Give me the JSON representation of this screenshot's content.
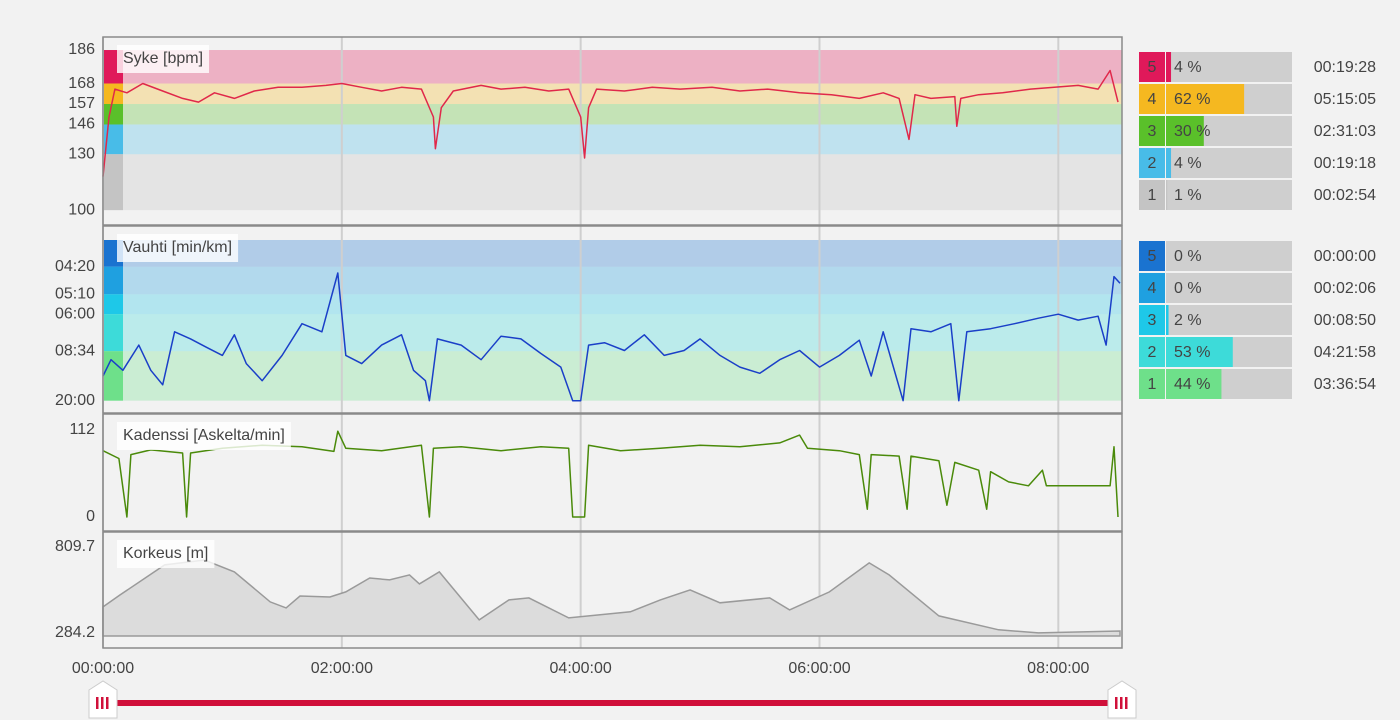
{
  "chart_data": [
    {
      "type": "line",
      "title": "Syke [bpm]",
      "color": "#e0284a",
      "x": [
        0,
        3,
        6,
        12,
        20,
        30,
        40,
        48,
        56,
        66,
        76,
        88,
        100,
        112,
        120,
        130,
        140,
        150,
        160,
        166,
        167,
        170,
        176,
        190,
        200,
        212,
        224,
        234,
        240,
        242,
        244,
        248,
        262,
        276,
        290,
        306,
        320,
        334,
        350,
        366,
        380,
        392,
        400,
        405,
        408,
        416,
        428,
        429,
        431,
        440,
        452,
        466,
        478,
        490,
        500,
        506,
        510
      ],
      "values": [
        118,
        150,
        165,
        163,
        168,
        164,
        160,
        158,
        163,
        160,
        164,
        166,
        166,
        167,
        168,
        166,
        164,
        166,
        165,
        150,
        133,
        155,
        164,
        167,
        165,
        166,
        164,
        165,
        150,
        128,
        155,
        165,
        164,
        166,
        165,
        166,
        164,
        165,
        163,
        162,
        160,
        163,
        160,
        138,
        162,
        160,
        161,
        145,
        160,
        162,
        163,
        165,
        166,
        167,
        165,
        175,
        158
      ],
      "xlim": [
        0,
        512
      ],
      "ylim": [
        92,
        193
      ],
      "yticks": [
        100,
        130,
        146,
        157,
        168,
        186
      ],
      "zones": {
        "labels": [
          5,
          4,
          3,
          2,
          1
        ],
        "colors": [
          "#e0195a",
          "#f5b820",
          "#5ac02a",
          "#48bce8",
          "#c4c4c4"
        ],
        "values": [
          4,
          62,
          30,
          4,
          1
        ],
        "value_labels": [
          "4 %",
          "62 %",
          "30 %",
          "4 %",
          "1 %"
        ],
        "times": [
          "00:19:28",
          "05:15:05",
          "02:31:03",
          "00:19:18",
          "00:02:54"
        ]
      }
    },
    {
      "type": "line",
      "title": "Vauhti [min/km]",
      "color": "#1a3fc8",
      "scale": "reciprocal",
      "x": [
        0,
        4,
        10,
        18,
        24,
        30,
        36,
        44,
        52,
        60,
        66,
        72,
        80,
        90,
        100,
        110,
        118,
        122,
        130,
        140,
        150,
        156,
        162,
        164,
        168,
        180,
        190,
        200,
        210,
        220,
        230,
        236,
        240,
        244,
        252,
        262,
        272,
        282,
        292,
        300,
        310,
        320,
        330,
        340,
        350,
        360,
        370,
        380,
        386,
        392,
        402,
        406,
        416,
        426,
        430,
        434,
        446,
        458,
        470,
        480,
        490,
        500,
        504,
        508,
        511
      ],
      "values": [
        12,
        9.5,
        11,
        8,
        11,
        14,
        7,
        7.5,
        8.2,
        9,
        7.2,
        10,
        13,
        9,
        6.5,
        7,
        4.5,
        9,
        10,
        8,
        7.2,
        11,
        13,
        20,
        7.5,
        8,
        9.5,
        7.3,
        7.5,
        8.8,
        10.5,
        20,
        20,
        8,
        7.8,
        8.5,
        7.2,
        9,
        8.5,
        7.5,
        9,
        10.5,
        11.5,
        9.5,
        8.5,
        10.5,
        9,
        7.6,
        12,
        7,
        20,
        6.8,
        7,
        6.5,
        20,
        7,
        6.8,
        6.5,
        6.2,
        6,
        6.3,
        6.1,
        8,
        4.6,
        4.8
      ],
      "xlim": [
        0,
        512
      ],
      "ylim": [
        30,
        3.5
      ],
      "yticks": [
        {
          "value": 20,
          "label": "20:00"
        },
        {
          "value": 8.5667,
          "label": "08:34"
        },
        {
          "value": 6,
          "label": "06:00"
        },
        {
          "value": 5.1667,
          "label": "05:10"
        },
        {
          "value": 4.3333,
          "label": "04:20"
        }
      ],
      "zones": {
        "labels": [
          5,
          4,
          3,
          2,
          1
        ],
        "colors": [
          "#1a73d0",
          "#1fa0e0",
          "#1ec8e8",
          "#3ddbd9",
          "#6ee08a"
        ],
        "values": [
          0,
          0,
          2,
          53,
          44
        ],
        "value_labels": [
          "0 %",
          "0 %",
          "2 %",
          "53 %",
          "44 %"
        ],
        "times": [
          "00:00:00",
          "00:02:06",
          "00:08:50",
          "04:21:58",
          "03:36:54"
        ]
      }
    },
    {
      "type": "line",
      "title": "Kadenssi [Askelta/min]",
      "color": "#4a8a0a",
      "x": [
        0,
        8,
        12,
        14,
        24,
        40,
        42,
        44,
        60,
        80,
        100,
        116,
        118,
        122,
        140,
        160,
        164,
        166,
        180,
        200,
        220,
        234,
        236,
        242,
        244,
        260,
        280,
        300,
        320,
        340,
        350,
        354,
        370,
        380,
        384,
        386,
        400,
        404,
        406,
        420,
        424,
        428,
        440,
        444,
        446,
        455,
        465,
        472,
        474,
        490,
        500,
        506,
        508,
        510
      ],
      "values": [
        85,
        75,
        0,
        80,
        86,
        82,
        0,
        82,
        88,
        92,
        90,
        84,
        110,
        88,
        85,
        92,
        0,
        88,
        90,
        85,
        90,
        88,
        0,
        0,
        92,
        85,
        88,
        92,
        90,
        95,
        105,
        88,
        85,
        80,
        10,
        80,
        78,
        10,
        78,
        72,
        15,
        70,
        60,
        10,
        58,
        45,
        40,
        60,
        40,
        40,
        40,
        40,
        90,
        0
      ],
      "xlim": [
        0,
        512
      ],
      "ylim": [
        -18,
        132
      ],
      "yticks": [
        0,
        112
      ]
    },
    {
      "type": "area",
      "title": "Korkeus [m]",
      "color": "#9a9a9a",
      "x": [
        0,
        8.5,
        31,
        51,
        66,
        84,
        92,
        99,
        114,
        122,
        134,
        144,
        154,
        159,
        169,
        189,
        204,
        214,
        234,
        265,
        280,
        295,
        310,
        335,
        345,
        365,
        385,
        395,
        420,
        450,
        470,
        511
      ],
      "values": [
        443,
        516,
        700,
        730,
        657,
        474,
        437,
        510,
        504,
        535,
        620,
        608,
        639,
        584,
        657,
        364,
        486,
        498,
        376,
        413,
        486,
        547,
        468,
        498,
        425,
        535,
        712,
        639,
        388,
        303,
        284,
        296
      ],
      "xlim": [
        0,
        512
      ],
      "ylim": [
        192,
        901
      ],
      "yticks": [
        284.2,
        809.7
      ],
      "xticks": [
        {
          "value": 0,
          "label": "00:00:00"
        },
        {
          "value": 120,
          "label": "02:00:00"
        },
        {
          "value": 240,
          "label": "04:00:00"
        },
        {
          "value": 360,
          "label": "06:00:00"
        },
        {
          "value": 480,
          "label": "08:00:00"
        }
      ]
    }
  ]
}
